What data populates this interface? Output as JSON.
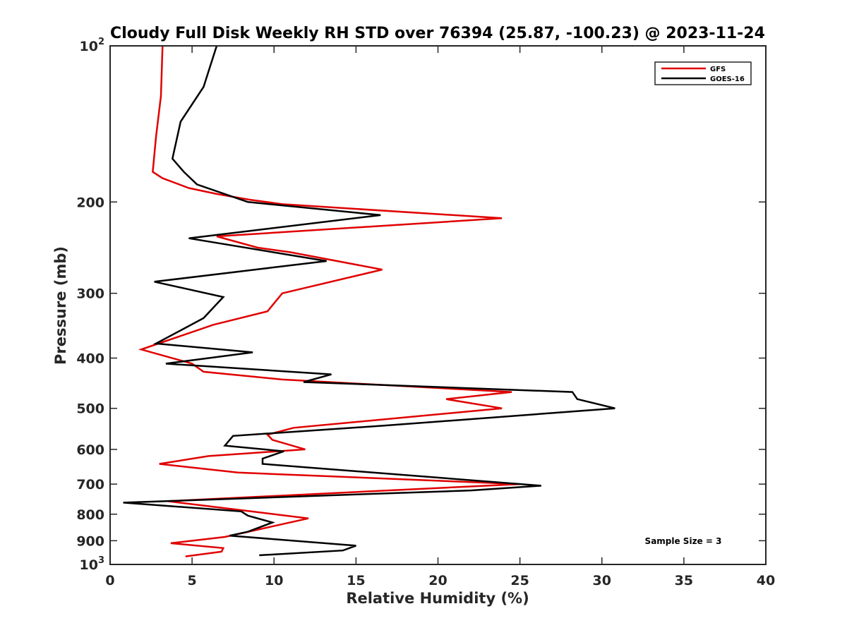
{
  "chart_data": {
    "type": "line",
    "title": "Cloudy Full Disk Weekly RH STD over 76394 (25.87, -100.23) @ 2023-11-24",
    "xlabel": "Relative Humidity (%)",
    "ylabel": "Pressure (mb)",
    "xlim": [
      0,
      40
    ],
    "ylim": [
      100,
      1000
    ],
    "yscale": "log",
    "y_reversed": true,
    "xticks": [
      0,
      5,
      10,
      15,
      20,
      25,
      30,
      35,
      40
    ],
    "xtick_labels": [
      "0",
      "5",
      "10",
      "15",
      "20",
      "25",
      "30",
      "35",
      "40"
    ],
    "yticks": [
      100,
      200,
      300,
      400,
      500,
      600,
      700,
      800,
      900,
      1000
    ],
    "ytick_labels": [
      {
        "base": "10",
        "exp": "2"
      },
      {
        "base": "200",
        "exp": ""
      },
      {
        "base": "300",
        "exp": ""
      },
      {
        "base": "400",
        "exp": ""
      },
      {
        "base": "500",
        "exp": ""
      },
      {
        "base": "600",
        "exp": ""
      },
      {
        "base": "700",
        "exp": ""
      },
      {
        "base": "800",
        "exp": ""
      },
      {
        "base": "900",
        "exp": ""
      },
      {
        "base": "10",
        "exp": "3"
      }
    ],
    "legend": "top-right",
    "grid": false,
    "annotation": "Sample Size = 3",
    "series": [
      {
        "name": "GFS",
        "color": "#e00000",
        "points": [
          [
            3.2,
            100
          ],
          [
            3.1,
            125
          ],
          [
            2.8,
            150
          ],
          [
            2.6,
            175
          ],
          [
            3.2,
            180
          ],
          [
            4.8,
            188
          ],
          [
            6.5,
            193
          ],
          [
            8.5,
            198
          ],
          [
            10.5,
            202
          ],
          [
            23.9,
            215
          ],
          [
            6.5,
            233
          ],
          [
            9.0,
            245
          ],
          [
            11.0,
            250
          ],
          [
            16.6,
            270
          ],
          [
            10.5,
            300
          ],
          [
            9.6,
            325
          ],
          [
            6.3,
            345
          ],
          [
            1.9,
            385
          ],
          [
            5.0,
            410
          ],
          [
            5.7,
            425
          ],
          [
            10.5,
            440
          ],
          [
            24.5,
            465
          ],
          [
            20.5,
            480
          ],
          [
            23.9,
            500
          ],
          [
            11.2,
            545
          ],
          [
            9.6,
            562
          ],
          [
            9.9,
            575
          ],
          [
            11.9,
            600
          ],
          [
            6.0,
            618
          ],
          [
            3.0,
            640
          ],
          [
            7.8,
            665
          ],
          [
            25.0,
            700
          ],
          [
            3.5,
            755
          ],
          [
            8.6,
            790
          ],
          [
            12.1,
            815
          ],
          [
            7.0,
            885
          ],
          [
            3.7,
            910
          ],
          [
            6.9,
            930
          ],
          [
            6.8,
            945
          ],
          [
            4.6,
            965
          ]
        ]
      },
      {
        "name": "GOES-16",
        "color": "#000000",
        "points": [
          [
            6.5,
            100
          ],
          [
            5.7,
            120
          ],
          [
            4.3,
            140
          ],
          [
            3.8,
            165
          ],
          [
            4.5,
            175
          ],
          [
            5.3,
            185
          ],
          [
            8.4,
            200
          ],
          [
            16.5,
            212
          ],
          [
            4.8,
            235
          ],
          [
            13.2,
            260
          ],
          [
            2.7,
            285
          ],
          [
            6.9,
            305
          ],
          [
            5.7,
            335
          ],
          [
            2.8,
            375
          ],
          [
            8.7,
            390
          ],
          [
            3.4,
            410
          ],
          [
            13.5,
            430
          ],
          [
            11.8,
            445
          ],
          [
            28.2,
            465
          ],
          [
            28.5,
            480
          ],
          [
            30.8,
            500
          ],
          [
            16.7,
            540
          ],
          [
            7.5,
            565
          ],
          [
            7.0,
            590
          ],
          [
            10.6,
            605
          ],
          [
            9.3,
            625
          ],
          [
            9.3,
            640
          ],
          [
            26.3,
            705
          ],
          [
            22.0,
            720
          ],
          [
            0.8,
            760
          ],
          [
            8.0,
            790
          ],
          [
            8.4,
            805
          ],
          [
            9.9,
            830
          ],
          [
            8.4,
            865
          ],
          [
            7.3,
            880
          ],
          [
            15.0,
            920
          ],
          [
            14.2,
            940
          ],
          [
            9.1,
            960
          ]
        ]
      }
    ]
  }
}
